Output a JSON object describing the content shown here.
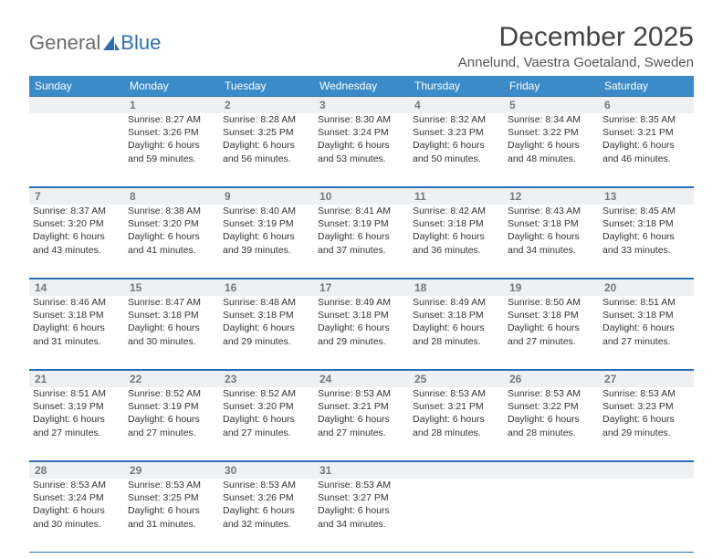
{
  "brand": {
    "part1": "General",
    "part2": "Blue"
  },
  "title": "December 2025",
  "location": "Annelund, Vaestra Goetaland, Sweden",
  "colors": {
    "header_bg": "#3b8bc9",
    "rule": "#2d6fb7",
    "daynum_bg": "#eef1f3",
    "text": "#333333",
    "muted": "#777777"
  },
  "weekdays": [
    "Sunday",
    "Monday",
    "Tuesday",
    "Wednesday",
    "Thursday",
    "Friday",
    "Saturday"
  ],
  "weeks": [
    [
      {
        "n": "",
        "lines": [
          "",
          "",
          "",
          ""
        ]
      },
      {
        "n": "1",
        "lines": [
          "Sunrise: 8:27 AM",
          "Sunset: 3:26 PM",
          "Daylight: 6 hours",
          "and 59 minutes."
        ]
      },
      {
        "n": "2",
        "lines": [
          "Sunrise: 8:28 AM",
          "Sunset: 3:25 PM",
          "Daylight: 6 hours",
          "and 56 minutes."
        ]
      },
      {
        "n": "3",
        "lines": [
          "Sunrise: 8:30 AM",
          "Sunset: 3:24 PM",
          "Daylight: 6 hours",
          "and 53 minutes."
        ]
      },
      {
        "n": "4",
        "lines": [
          "Sunrise: 8:32 AM",
          "Sunset: 3:23 PM",
          "Daylight: 6 hours",
          "and 50 minutes."
        ]
      },
      {
        "n": "5",
        "lines": [
          "Sunrise: 8:34 AM",
          "Sunset: 3:22 PM",
          "Daylight: 6 hours",
          "and 48 minutes."
        ]
      },
      {
        "n": "6",
        "lines": [
          "Sunrise: 8:35 AM",
          "Sunset: 3:21 PM",
          "Daylight: 6 hours",
          "and 46 minutes."
        ]
      }
    ],
    [
      {
        "n": "7",
        "lines": [
          "Sunrise: 8:37 AM",
          "Sunset: 3:20 PM",
          "Daylight: 6 hours",
          "and 43 minutes."
        ]
      },
      {
        "n": "8",
        "lines": [
          "Sunrise: 8:38 AM",
          "Sunset: 3:20 PM",
          "Daylight: 6 hours",
          "and 41 minutes."
        ]
      },
      {
        "n": "9",
        "lines": [
          "Sunrise: 8:40 AM",
          "Sunset: 3:19 PM",
          "Daylight: 6 hours",
          "and 39 minutes."
        ]
      },
      {
        "n": "10",
        "lines": [
          "Sunrise: 8:41 AM",
          "Sunset: 3:19 PM",
          "Daylight: 6 hours",
          "and 37 minutes."
        ]
      },
      {
        "n": "11",
        "lines": [
          "Sunrise: 8:42 AM",
          "Sunset: 3:18 PM",
          "Daylight: 6 hours",
          "and 36 minutes."
        ]
      },
      {
        "n": "12",
        "lines": [
          "Sunrise: 8:43 AM",
          "Sunset: 3:18 PM",
          "Daylight: 6 hours",
          "and 34 minutes."
        ]
      },
      {
        "n": "13",
        "lines": [
          "Sunrise: 8:45 AM",
          "Sunset: 3:18 PM",
          "Daylight: 6 hours",
          "and 33 minutes."
        ]
      }
    ],
    [
      {
        "n": "14",
        "lines": [
          "Sunrise: 8:46 AM",
          "Sunset: 3:18 PM",
          "Daylight: 6 hours",
          "and 31 minutes."
        ]
      },
      {
        "n": "15",
        "lines": [
          "Sunrise: 8:47 AM",
          "Sunset: 3:18 PM",
          "Daylight: 6 hours",
          "and 30 minutes."
        ]
      },
      {
        "n": "16",
        "lines": [
          "Sunrise: 8:48 AM",
          "Sunset: 3:18 PM",
          "Daylight: 6 hours",
          "and 29 minutes."
        ]
      },
      {
        "n": "17",
        "lines": [
          "Sunrise: 8:49 AM",
          "Sunset: 3:18 PM",
          "Daylight: 6 hours",
          "and 29 minutes."
        ]
      },
      {
        "n": "18",
        "lines": [
          "Sunrise: 8:49 AM",
          "Sunset: 3:18 PM",
          "Daylight: 6 hours",
          "and 28 minutes."
        ]
      },
      {
        "n": "19",
        "lines": [
          "Sunrise: 8:50 AM",
          "Sunset: 3:18 PM",
          "Daylight: 6 hours",
          "and 27 minutes."
        ]
      },
      {
        "n": "20",
        "lines": [
          "Sunrise: 8:51 AM",
          "Sunset: 3:18 PM",
          "Daylight: 6 hours",
          "and 27 minutes."
        ]
      }
    ],
    [
      {
        "n": "21",
        "lines": [
          "Sunrise: 8:51 AM",
          "Sunset: 3:19 PM",
          "Daylight: 6 hours",
          "and 27 minutes."
        ]
      },
      {
        "n": "22",
        "lines": [
          "Sunrise: 8:52 AM",
          "Sunset: 3:19 PM",
          "Daylight: 6 hours",
          "and 27 minutes."
        ]
      },
      {
        "n": "23",
        "lines": [
          "Sunrise: 8:52 AM",
          "Sunset: 3:20 PM",
          "Daylight: 6 hours",
          "and 27 minutes."
        ]
      },
      {
        "n": "24",
        "lines": [
          "Sunrise: 8:53 AM",
          "Sunset: 3:21 PM",
          "Daylight: 6 hours",
          "and 27 minutes."
        ]
      },
      {
        "n": "25",
        "lines": [
          "Sunrise: 8:53 AM",
          "Sunset: 3:21 PM",
          "Daylight: 6 hours",
          "and 28 minutes."
        ]
      },
      {
        "n": "26",
        "lines": [
          "Sunrise: 8:53 AM",
          "Sunset: 3:22 PM",
          "Daylight: 6 hours",
          "and 28 minutes."
        ]
      },
      {
        "n": "27",
        "lines": [
          "Sunrise: 8:53 AM",
          "Sunset: 3:23 PM",
          "Daylight: 6 hours",
          "and 29 minutes."
        ]
      }
    ],
    [
      {
        "n": "28",
        "lines": [
          "Sunrise: 8:53 AM",
          "Sunset: 3:24 PM",
          "Daylight: 6 hours",
          "and 30 minutes."
        ]
      },
      {
        "n": "29",
        "lines": [
          "Sunrise: 8:53 AM",
          "Sunset: 3:25 PM",
          "Daylight: 6 hours",
          "and 31 minutes."
        ]
      },
      {
        "n": "30",
        "lines": [
          "Sunrise: 8:53 AM",
          "Sunset: 3:26 PM",
          "Daylight: 6 hours",
          "and 32 minutes."
        ]
      },
      {
        "n": "31",
        "lines": [
          "Sunrise: 8:53 AM",
          "Sunset: 3:27 PM",
          "Daylight: 6 hours",
          "and 34 minutes."
        ]
      },
      {
        "n": "",
        "lines": [
          "",
          "",
          "",
          ""
        ]
      },
      {
        "n": "",
        "lines": [
          "",
          "",
          "",
          ""
        ]
      },
      {
        "n": "",
        "lines": [
          "",
          "",
          "",
          ""
        ]
      }
    ]
  ]
}
